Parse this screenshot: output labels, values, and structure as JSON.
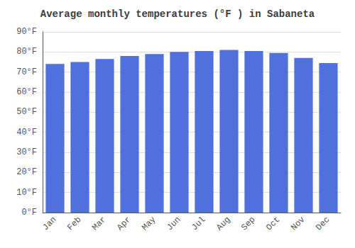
{
  "chart_data": {
    "type": "bar",
    "title": "Average monthly temperatures (°F ) in Sabaneta",
    "categories": [
      "Jan",
      "Feb",
      "Mar",
      "Apr",
      "May",
      "Jun",
      "Jul",
      "Aug",
      "Sep",
      "Oct",
      "Nov",
      "Dec"
    ],
    "values": [
      74,
      75,
      76.5,
      78,
      79,
      80,
      80.5,
      81,
      80.5,
      79.5,
      77,
      74.5
    ],
    "ylim": [
      0,
      90
    ],
    "yticks": [
      {
        "value": 0,
        "label": "0°F"
      },
      {
        "value": 10,
        "label": "10°F"
      },
      {
        "value": 20,
        "label": "20°F"
      },
      {
        "value": 30,
        "label": "30°F"
      },
      {
        "value": 40,
        "label": "40°F"
      },
      {
        "value": 50,
        "label": "50°F"
      },
      {
        "value": 60,
        "label": "60°F"
      },
      {
        "value": 70,
        "label": "70°F"
      },
      {
        "value": 80,
        "label": "80°F"
      },
      {
        "value": 90,
        "label": "90°F"
      }
    ],
    "grid": true
  }
}
